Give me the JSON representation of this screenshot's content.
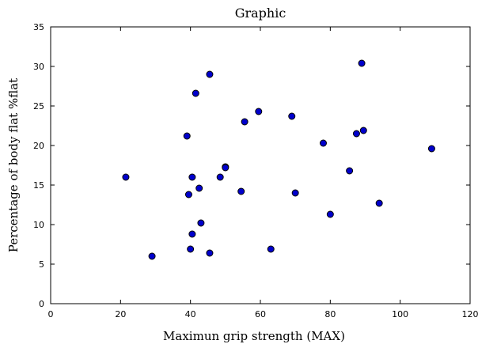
{
  "chart_data": {
    "type": "scatter",
    "title": "Graphic",
    "xlabel": "Maximun grip strength (MAX)",
    "ylabel": "Percentage of body flat %flat",
    "xlim": [
      0,
      120
    ],
    "ylim": [
      0,
      35
    ],
    "xticks": [
      0,
      20,
      40,
      60,
      80,
      100,
      120
    ],
    "yticks": [
      0,
      5,
      10,
      15,
      20,
      25,
      30,
      35
    ],
    "grid": false,
    "marker_color": "#0000cc",
    "marker_edge_color": "#000000",
    "points": [
      {
        "x": 21.5,
        "y": 16.0
      },
      {
        "x": 29.0,
        "y": 6.0
      },
      {
        "x": 39.0,
        "y": 21.2
      },
      {
        "x": 39.5,
        "y": 13.8
      },
      {
        "x": 40.0,
        "y": 6.9
      },
      {
        "x": 40.5,
        "y": 16.0
      },
      {
        "x": 40.5,
        "y": 8.8
      },
      {
        "x": 41.5,
        "y": 26.6
      },
      {
        "x": 42.5,
        "y": 14.6
      },
      {
        "x": 43.0,
        "y": 10.2
      },
      {
        "x": 45.5,
        "y": 29.0
      },
      {
        "x": 45.5,
        "y": 6.4
      },
      {
        "x": 48.5,
        "y": 16.0
      },
      {
        "x": 50.0,
        "y": 17.3
      },
      {
        "x": 50.0,
        "y": 17.2
      },
      {
        "x": 54.5,
        "y": 14.2
      },
      {
        "x": 55.5,
        "y": 23.0
      },
      {
        "x": 59.5,
        "y": 24.3
      },
      {
        "x": 63.0,
        "y": 6.9
      },
      {
        "x": 69.0,
        "y": 23.7
      },
      {
        "x": 70.0,
        "y": 14.0
      },
      {
        "x": 78.0,
        "y": 20.3
      },
      {
        "x": 80.0,
        "y": 11.3
      },
      {
        "x": 85.5,
        "y": 16.8
      },
      {
        "x": 87.5,
        "y": 21.5
      },
      {
        "x": 89.0,
        "y": 30.4
      },
      {
        "x": 89.5,
        "y": 21.9
      },
      {
        "x": 94.0,
        "y": 12.7
      },
      {
        "x": 109.0,
        "y": 19.6
      }
    ]
  }
}
